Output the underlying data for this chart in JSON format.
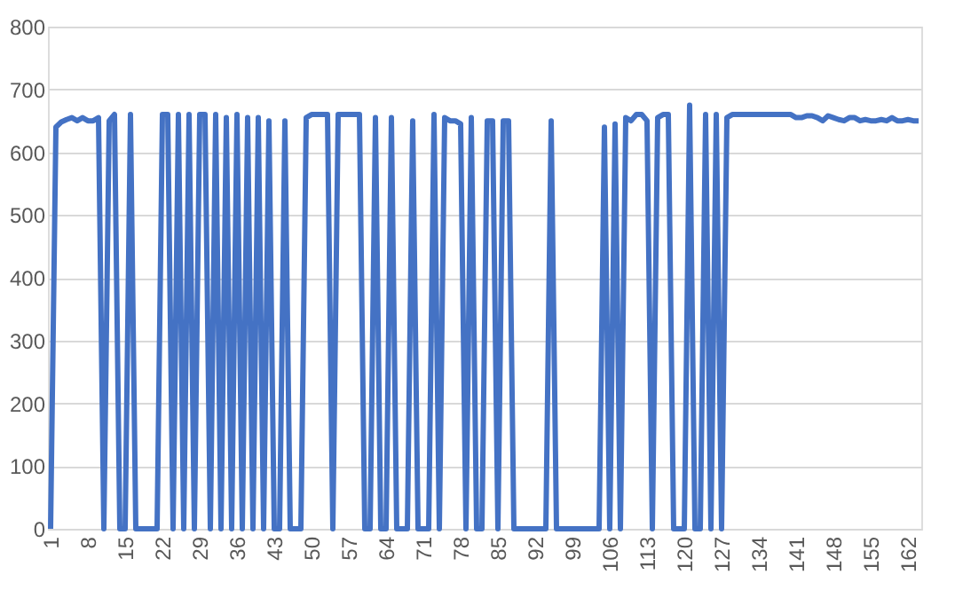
{
  "chart_data": {
    "type": "line",
    "categories": [
      "1",
      null,
      null,
      null,
      null,
      null,
      null,
      "8",
      null,
      null,
      null,
      null,
      null,
      null,
      "15",
      null,
      null,
      null,
      null,
      null,
      null,
      "22",
      null,
      null,
      null,
      null,
      null,
      null,
      "29",
      null,
      null,
      null,
      null,
      null,
      null,
      "36",
      null,
      null,
      null,
      null,
      null,
      null,
      "43",
      null,
      null,
      null,
      null,
      null,
      null,
      "50",
      null,
      null,
      null,
      null,
      null,
      null,
      "57",
      null,
      null,
      null,
      null,
      null,
      null,
      "64",
      null,
      null,
      null,
      null,
      null,
      null,
      "71",
      null,
      null,
      null,
      null,
      null,
      null,
      "78",
      null,
      null,
      null,
      null,
      null,
      null,
      "85",
      null,
      null,
      null,
      null,
      null,
      null,
      "92",
      null,
      null,
      null,
      null,
      null,
      null,
      "99",
      null,
      null,
      null,
      null,
      null,
      null,
      "106",
      null,
      null,
      null,
      null,
      null,
      null,
      "113",
      null,
      null,
      null,
      null,
      null,
      null,
      "120",
      null,
      null,
      null,
      null,
      null,
      null,
      "127",
      null,
      null,
      null,
      null,
      null,
      null,
      "134",
      null,
      null,
      null,
      null,
      null,
      null,
      "141",
      null,
      null,
      null,
      null,
      null,
      null,
      "148",
      null,
      null,
      null,
      null,
      null,
      null,
      "155",
      null,
      null,
      null,
      null,
      null,
      null,
      "162",
      null,
      null
    ],
    "series": [
      {
        "color": "#4472c4",
        "values": [
          0,
          640,
          648,
          652,
          655,
          650,
          655,
          650,
          650,
          655,
          0,
          650,
          660,
          0,
          0,
          660,
          0,
          0,
          0,
          0,
          0,
          660,
          660,
          0,
          660,
          0,
          660,
          0,
          660,
          660,
          0,
          660,
          0,
          655,
          0,
          660,
          0,
          655,
          0,
          655,
          0,
          650,
          0,
          0,
          650,
          0,
          0,
          0,
          655,
          660,
          660,
          660,
          660,
          0,
          660,
          660,
          660,
          660,
          660,
          0,
          0,
          655,
          0,
          0,
          655,
          0,
          0,
          0,
          650,
          0,
          0,
          0,
          660,
          0,
          655,
          650,
          650,
          645,
          0,
          655,
          0,
          0,
          650,
          650,
          0,
          650,
          650,
          0,
          0,
          0,
          0,
          0,
          0,
          0,
          650,
          0,
          0,
          0,
          0,
          0,
          0,
          0,
          0,
          0,
          640,
          0,
          645,
          0,
          655,
          650,
          660,
          660,
          650,
          0,
          655,
          660,
          660,
          0,
          0,
          0,
          675,
          0,
          0,
          660,
          0,
          660,
          0,
          655,
          660,
          660,
          660,
          660,
          660,
          660,
          660,
          660,
          660,
          660,
          660,
          660,
          655,
          655,
          658,
          658,
          655,
          650,
          658,
          655,
          652,
          650,
          655,
          655,
          650,
          652,
          650,
          650,
          652,
          650,
          655,
          650,
          650,
          652,
          650,
          650
        ]
      }
    ],
    "ylim": [
      0,
      800
    ],
    "yticks": [
      0,
      100,
      200,
      300,
      400,
      500,
      600,
      700,
      800
    ],
    "grid": "y",
    "line_style": "solid",
    "marker": "none"
  }
}
